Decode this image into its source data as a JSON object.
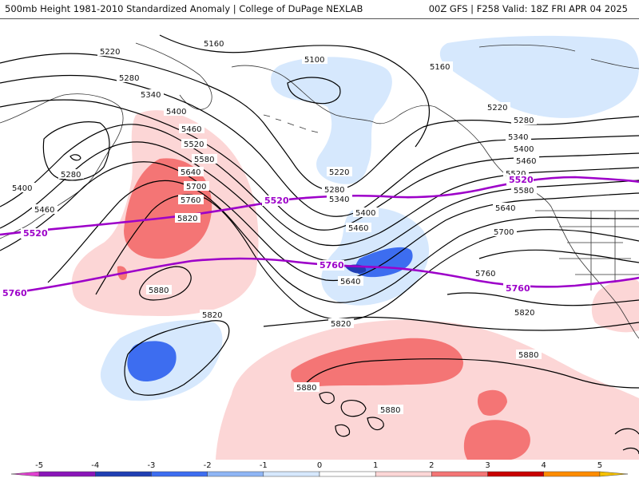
{
  "header": {
    "title_left": "500mb Height 1981-2010 Standardized Anomaly | College of DuPage NEXLAB",
    "title_right": "00Z GFS | F258 Valid: 18Z FRI APR 04 2025"
  },
  "colors": {
    "contour": "#000000",
    "reference_contour": "#9d00c9",
    "coastline": "#333333",
    "background": "#ffffff"
  },
  "contour_labels": [
    {
      "id": "c5160a",
      "text": "5160"
    },
    {
      "id": "c5100",
      "text": "5100"
    },
    {
      "id": "c5160b",
      "text": "5160"
    },
    {
      "id": "c5220a",
      "text": "5220"
    },
    {
      "id": "c5280a",
      "text": "5280"
    },
    {
      "id": "c5340a",
      "text": "5340"
    },
    {
      "id": "c5400a",
      "text": "5400"
    },
    {
      "id": "c5460a",
      "text": "5460"
    },
    {
      "id": "c5520a",
      "text": "5520"
    },
    {
      "id": "c5580a",
      "text": "5580"
    },
    {
      "id": "c5640a",
      "text": "5640"
    },
    {
      "id": "c5700a",
      "text": "5700"
    },
    {
      "id": "c5760a",
      "text": "5760"
    },
    {
      "id": "c5820a",
      "text": "5820"
    },
    {
      "id": "c5280b",
      "text": "5280"
    },
    {
      "id": "c5400b",
      "text": "5400"
    },
    {
      "id": "c5460b",
      "text": "5460"
    },
    {
      "id": "c5880a",
      "text": "5880"
    },
    {
      "id": "c5220b",
      "text": "5220"
    },
    {
      "id": "c5280c",
      "text": "5280"
    },
    {
      "id": "c5340b",
      "text": "5340"
    },
    {
      "id": "c5400c",
      "text": "5400"
    },
    {
      "id": "c5460c",
      "text": "5460"
    },
    {
      "id": "c5640b",
      "text": "5640"
    },
    {
      "id": "c5220c",
      "text": "5220"
    },
    {
      "id": "c5280d",
      "text": "5280"
    },
    {
      "id": "c5340c",
      "text": "5340"
    },
    {
      "id": "c5400d",
      "text": "5400"
    },
    {
      "id": "c5460d",
      "text": "5460"
    },
    {
      "id": "c5520b",
      "text": "5520"
    },
    {
      "id": "c5580b",
      "text": "5580"
    },
    {
      "id": "c5640c",
      "text": "5640"
    },
    {
      "id": "c5700b",
      "text": "5700"
    },
    {
      "id": "c5760b",
      "text": "5760"
    },
    {
      "id": "c5820b",
      "text": "5820"
    },
    {
      "id": "c5820c",
      "text": "5820"
    },
    {
      "id": "c5820d",
      "text": "5820"
    },
    {
      "id": "c5880b",
      "text": "5880"
    },
    {
      "id": "c5880c",
      "text": "5880"
    },
    {
      "id": "c5880d",
      "text": "5880"
    }
  ],
  "reference_labels": [
    {
      "id": "r5520a",
      "text": "5520"
    },
    {
      "id": "r5520b",
      "text": "5520"
    },
    {
      "id": "r5520c",
      "text": "5520"
    },
    {
      "id": "r5760a",
      "text": "5760"
    },
    {
      "id": "r5760b",
      "text": "5760"
    },
    {
      "id": "r5760c",
      "text": "5760"
    }
  ],
  "colorbar": {
    "tick_labels": [
      "-5",
      "-4",
      "-3",
      "-2",
      "-1",
      "0",
      "1",
      "2",
      "3",
      "4",
      "5"
    ],
    "bins": [
      {
        "from": -5.5,
        "to": -5,
        "color": "#e040d0"
      },
      {
        "from": -5,
        "to": -4,
        "color": "#8a16b8"
      },
      {
        "from": -4,
        "to": -3,
        "color": "#1f3fb3"
      },
      {
        "from": -3,
        "to": -2,
        "color": "#3d6df0"
      },
      {
        "from": -2,
        "to": -1,
        "color": "#8fb6f5"
      },
      {
        "from": -1,
        "to": 0,
        "color": "#d6e8fd"
      },
      {
        "from": 0,
        "to": 1,
        "color": "#ffffff"
      },
      {
        "from": 1,
        "to": 2,
        "color": "#fcd6d6"
      },
      {
        "from": 2,
        "to": 3,
        "color": "#f47575"
      },
      {
        "from": 3,
        "to": 4,
        "color": "#c80000"
      },
      {
        "from": 4,
        "to": 5,
        "color": "#ff8c00"
      },
      {
        "from": 5,
        "to": 5.5,
        "color": "#f5c000"
      }
    ]
  },
  "anomaly_colors": {
    "light_blue": "#cfe2fb",
    "mid_blue": "#3d6df0",
    "dark_blue": "#1f3fb3",
    "light_red": "#fcd6d6",
    "mid_red": "#f47575",
    "dark_red": "#c80000"
  }
}
